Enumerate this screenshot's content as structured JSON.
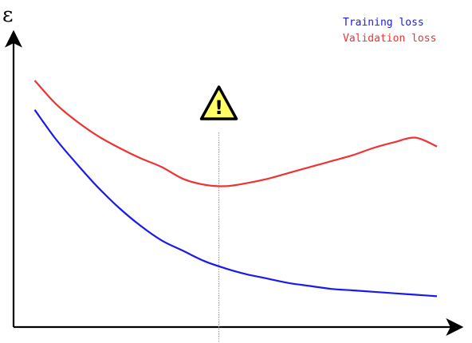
{
  "chart_data": {
    "type": "line",
    "title": "",
    "xlabel": "",
    "ylabel": "ε",
    "xlim": [
      0,
      100
    ],
    "ylim": [
      0,
      100
    ],
    "grid": false,
    "legend_position": "top-right",
    "annotation": {
      "type": "warning-marker",
      "x": 48.5,
      "icon": "warning-triangle-icon",
      "glyph": "!"
    },
    "series": [
      {
        "name": "Training loss",
        "color": "#1a1aee",
        "x": [
          5,
          10,
          15,
          20,
          25,
          30,
          35,
          40,
          45,
          50,
          55,
          60,
          65,
          70,
          75,
          80,
          85,
          90,
          95,
          100
        ],
        "y": [
          74,
          64,
          55.5,
          47.5,
          40.5,
          34.5,
          29.5,
          26,
          22.5,
          20,
          18,
          16.5,
          15,
          14,
          13,
          12.5,
          12,
          11.5,
          11,
          10.5
        ]
      },
      {
        "name": "Validation loss",
        "color": "#ee3333",
        "x": [
          5,
          10,
          15,
          20,
          25,
          30,
          35,
          40,
          45,
          50,
          55,
          60,
          65,
          70,
          75,
          80,
          85,
          90,
          95,
          100
        ],
        "y": [
          84,
          76,
          70,
          65,
          61,
          57.5,
          54.5,
          50.5,
          48.5,
          48,
          49,
          50.5,
          52.5,
          54.5,
          56.5,
          58.5,
          61,
          63,
          64.5,
          61.5
        ]
      }
    ]
  }
}
